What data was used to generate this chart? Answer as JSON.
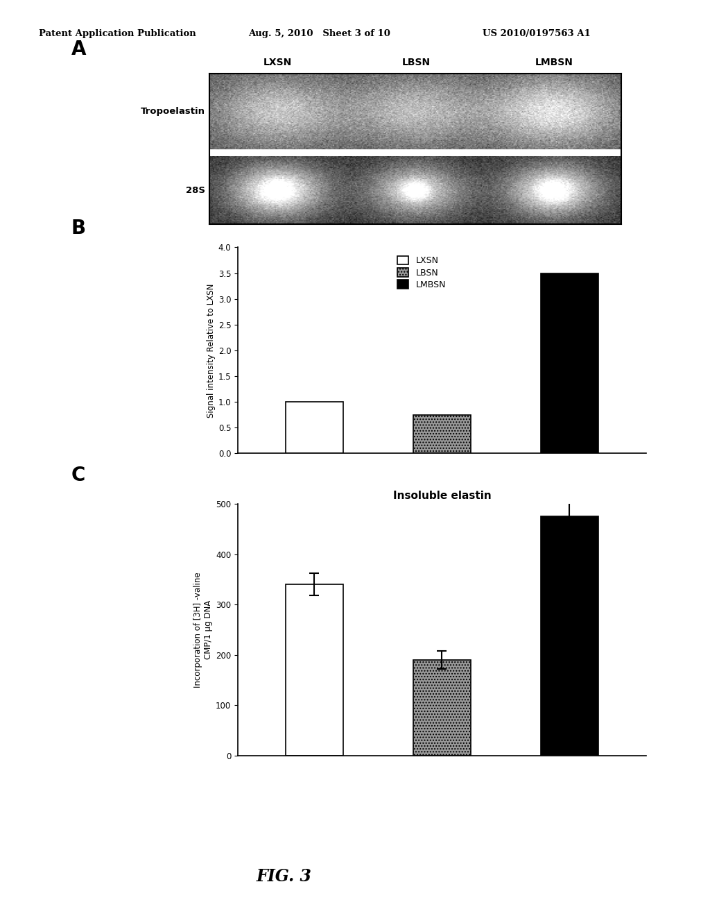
{
  "header_left": "Patent Application Publication",
  "header_mid": "Aug. 5, 2010   Sheet 3 of 10",
  "header_right": "US 2010/0197563 A1",
  "fig_label": "FIG. 3",
  "panel_A_label": "A",
  "panel_B_label": "B",
  "panel_C_label": "C",
  "panel_B": {
    "categories": [
      "LXSN",
      "LBSN",
      "LMBSN"
    ],
    "values": [
      1.0,
      0.75,
      3.5
    ],
    "colors": [
      "white",
      "#777777",
      "black"
    ],
    "edgecolors": [
      "black",
      "black",
      "black"
    ],
    "ylabel": "Signal intensity Relative to LXSN",
    "ylim": [
      0,
      4
    ],
    "yticks": [
      0,
      0.5,
      1,
      1.5,
      2,
      2.5,
      3,
      3.5,
      4
    ],
    "legend_labels": [
      "LXSN",
      "LBSN",
      "LMBSN"
    ],
    "legend_colors": [
      "white",
      "#777777",
      "black"
    ]
  },
  "panel_C": {
    "title": "Insoluble elastin",
    "categories": [
      "LXSN",
      "LBSN",
      "LMBSN"
    ],
    "values": [
      340,
      190,
      475
    ],
    "errors": [
      22,
      18,
      28
    ],
    "colors": [
      "white",
      "#777777",
      "black"
    ],
    "edgecolors": [
      "black",
      "black",
      "black"
    ],
    "ylabel": "Incorporation of [3H] -valine\nCMP/1 μg DNA",
    "ylim": [
      0,
      500
    ],
    "yticks": [
      0,
      100,
      200,
      300,
      400,
      500
    ]
  },
  "gel_image": {
    "top_label": "Tropoelastin",
    "bottom_label": "28S",
    "col_labels": [
      "LXSN",
      "LBSN",
      "LMBSN"
    ],
    "top_bg": "#5a5a5a",
    "bot_bg": "#2a2a2a"
  },
  "background_color": "#ffffff"
}
